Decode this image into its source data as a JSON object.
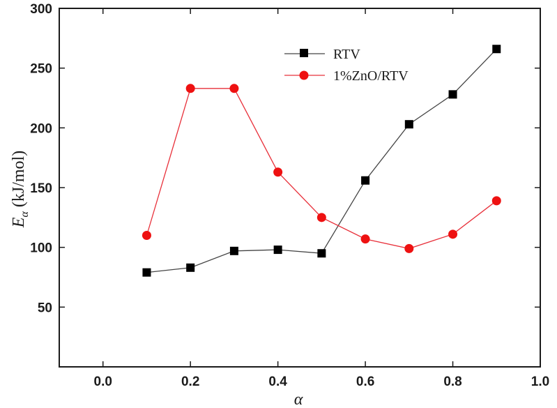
{
  "chart_data": {
    "type": "line",
    "xlabel": "α",
    "ylabel_main": "E",
    "ylabel_sub": "α",
    "ylabel_unit": " (kJ/mol)",
    "xlim": [
      -0.1,
      1.0
    ],
    "ylim": [
      0,
      300
    ],
    "x_ticks": [
      0.0,
      0.2,
      0.4,
      0.6,
      0.8,
      1.0
    ],
    "x_tick_labels": [
      "0.0",
      "0.2",
      "0.4",
      "0.6",
      "0.8",
      "1.0"
    ],
    "y_ticks": [
      50,
      100,
      150,
      200,
      250,
      300
    ],
    "y_tick_labels": [
      "50",
      "100",
      "150",
      "200",
      "250",
      "300"
    ],
    "legend_position": "top-right",
    "grid": false,
    "series": [
      {
        "name": "RTV",
        "marker": "square",
        "line_color": "#444444",
        "marker_color": "#000000",
        "x": [
          0.1,
          0.2,
          0.3,
          0.4,
          0.5,
          0.6,
          0.7,
          0.8,
          0.9
        ],
        "y": [
          79,
          83,
          97,
          98,
          95,
          156,
          203,
          228,
          266
        ]
      },
      {
        "name": "1%ZnO/RTV",
        "marker": "circle",
        "line_color": "#e8303a",
        "marker_color": "#ee1111",
        "x": [
          0.1,
          0.2,
          0.3,
          0.4,
          0.5,
          0.6,
          0.7,
          0.8,
          0.9
        ],
        "y": [
          110,
          233,
          233,
          163,
          125,
          107,
          99,
          111,
          139
        ]
      }
    ]
  }
}
